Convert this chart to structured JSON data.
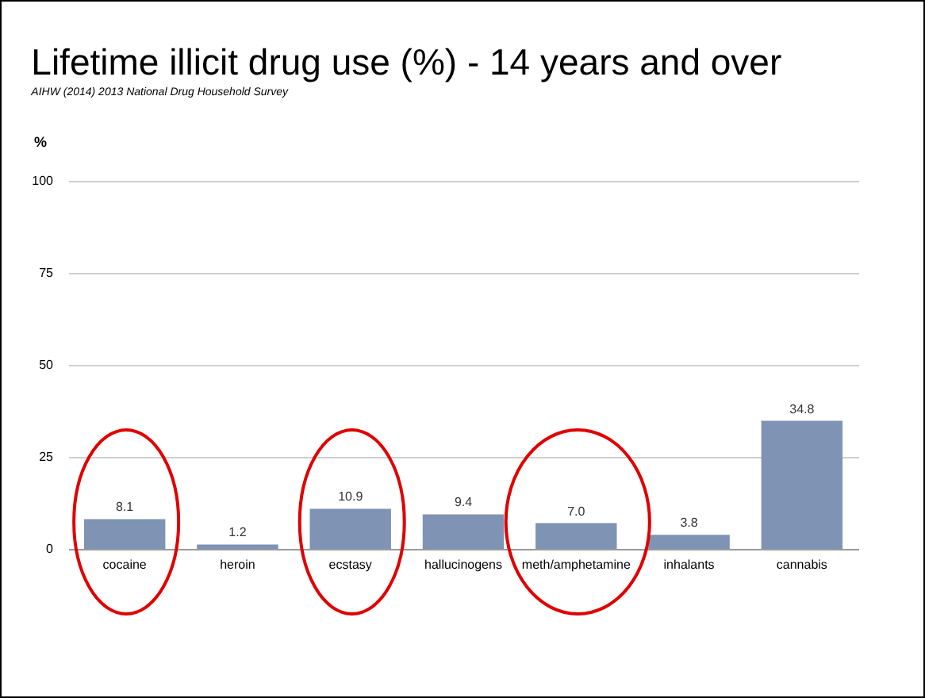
{
  "chart_data": {
    "type": "bar",
    "title": "Lifetime illicit drug use (%) - 14 years and over",
    "subtitle": "AIHW (2014) 2013 National Drug Household Survey",
    "ylabel": "%",
    "categories": [
      "cocaine",
      "heroin",
      "ecstasy",
      "hallucinogens",
      "meth/amphetamine",
      "inhalants",
      "cannabis"
    ],
    "values": [
      8.1,
      1.2,
      10.9,
      9.4,
      7.0,
      3.8,
      34.8
    ],
    "value_labels": [
      "8.1",
      "1.2",
      "10.9",
      "9.4",
      "7.0",
      "3.8",
      "34.8"
    ],
    "color": "#7f93b5",
    "ylim": [
      0,
      100
    ],
    "yticks": [
      0,
      25,
      50,
      75,
      100
    ],
    "grid": "y"
  }
}
